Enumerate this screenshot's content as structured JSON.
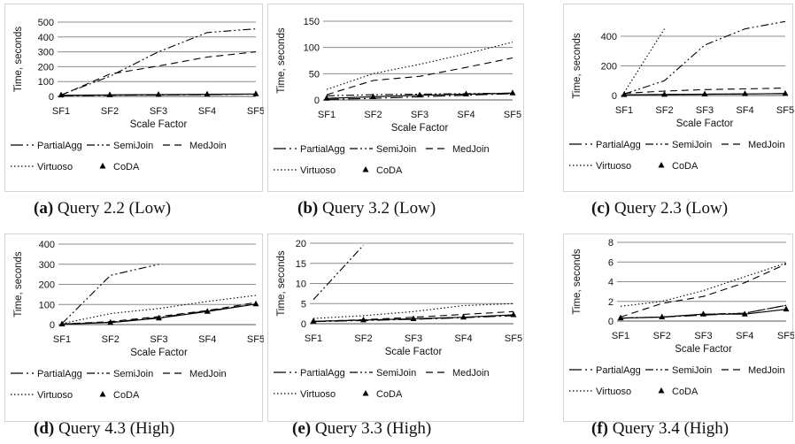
{
  "panels": [
    {
      "caption_letter": "(a)",
      "caption_text": "Query 2.2 (Low)",
      "chart_data": {
        "type": "line",
        "xlabel": "Scale Factor",
        "ylabel": "Time, seconds",
        "categories": [
          "SF1",
          "SF2",
          "SF3",
          "SF4",
          "SF5"
        ],
        "yticks": [
          0,
          100,
          200,
          300,
          400,
          500
        ],
        "ylim": [
          0,
          500
        ],
        "series": [
          {
            "name": "PartialAgg",
            "values": [
              5,
              8,
              10,
              12,
              15
            ]
          },
          {
            "name": "SemiJoin",
            "values": [
              10,
              135,
              300,
              430,
              455
            ]
          },
          {
            "name": "MedJoin",
            "values": [
              8,
              150,
              205,
              265,
              300
            ]
          },
          {
            "name": "Virtuoso",
            "values": [
              null,
              null,
              null,
              null,
              null
            ]
          },
          {
            "name": "CoDA",
            "values": [
              8,
              10,
              12,
              14,
              16
            ]
          }
        ]
      }
    },
    {
      "caption_letter": "(b)",
      "caption_text": "Query 3.2 (Low)",
      "chart_data": {
        "type": "line",
        "xlabel": "Scale Factor",
        "ylabel": "Time, seconds",
        "categories": [
          "SF1",
          "SF2",
          "SF3",
          "SF4",
          "SF5"
        ],
        "yticks": [
          0,
          50,
          100,
          150
        ],
        "ylim": [
          0,
          150
        ],
        "series": [
          {
            "name": "PartialAgg",
            "values": [
              1,
              3,
              6,
              9,
              12
            ]
          },
          {
            "name": "SemiJoin",
            "values": [
              8,
              10,
              11,
              12,
              13
            ]
          },
          {
            "name": "MedJoin",
            "values": [
              10,
              37,
              45,
              62,
              80
            ]
          },
          {
            "name": "Virtuoso",
            "values": [
              20,
              50,
              68,
              88,
              110
            ]
          },
          {
            "name": "CoDA",
            "values": [
              3,
              6,
              9,
              11,
              13
            ]
          }
        ]
      }
    },
    {
      "caption_letter": "(c)",
      "caption_text": "Query 2.3 (Low)",
      "chart_data": {
        "type": "line",
        "xlabel": "Scale Factor",
        "ylabel": "Time, seconds",
        "categories": [
          "SF1",
          "SF2",
          "SF3",
          "SF4",
          "SF5"
        ],
        "yticks": [
          0,
          200,
          400
        ],
        "ylim": [
          0,
          520
        ],
        "series": [
          {
            "name": "PartialAgg",
            "values": [
              5,
              7,
              9,
              11,
              13
            ]
          },
          {
            "name": "SemiJoin",
            "values": [
              10,
              100,
              340,
              450,
              500
            ]
          },
          {
            "name": "MedJoin",
            "values": [
              15,
              30,
              40,
              45,
              50
            ]
          },
          {
            "name": "Virtuoso",
            "values": [
              20,
              450,
              null,
              null,
              null
            ]
          },
          {
            "name": "CoDA",
            "values": [
              5,
              7,
              9,
              11,
              13
            ]
          }
        ]
      }
    },
    {
      "caption_letter": "(d)",
      "caption_text": "Query 4.3 (High)",
      "chart_data": {
        "type": "line",
        "xlabel": "Scale Factor",
        "ylabel": "Time, seconds",
        "categories": [
          "SF1",
          "SF2",
          "SF3",
          "SF4",
          "SF5"
        ],
        "yticks": [
          0,
          100,
          200,
          300,
          400
        ],
        "ylim": [
          0,
          400
        ],
        "series": [
          {
            "name": "PartialAgg",
            "values": [
              3,
              12,
              35,
              68,
              102
            ]
          },
          {
            "name": "SemiJoin",
            "values": [
              5,
              245,
              300,
              null,
              null
            ]
          },
          {
            "name": "MedJoin",
            "values": [
              3,
              15,
              40,
              70,
              110
            ]
          },
          {
            "name": "Virtuoso",
            "values": [
              5,
              55,
              80,
              115,
              145
            ]
          },
          {
            "name": "CoDA",
            "values": [
              2,
              10,
              32,
              65,
              102
            ]
          }
        ]
      }
    },
    {
      "caption_letter": "(e)",
      "caption_text": "Query 3.3 (High)",
      "chart_data": {
        "type": "line",
        "xlabel": "Scale Factor",
        "ylabel": "Time, seconds",
        "categories": [
          "SF1",
          "SF2",
          "SF3",
          "SF4",
          "SF5"
        ],
        "yticks": [
          0,
          5,
          10,
          15,
          20
        ],
        "ylim": [
          0,
          20
        ],
        "series": [
          {
            "name": "PartialAgg",
            "values": [
              0.5,
              0.8,
              1.1,
              1.5,
              2.0
            ]
          },
          {
            "name": "SemiJoin",
            "values": [
              6,
              19.5,
              null,
              null,
              null
            ]
          },
          {
            "name": "MedJoin",
            "values": [
              0.6,
              1.0,
              1.6,
              2.3,
              3.0
            ]
          },
          {
            "name": "Virtuoso",
            "values": [
              1.3,
              2.0,
              3.0,
              4.5,
              5.0
            ]
          },
          {
            "name": "CoDA",
            "values": [
              0.6,
              0.9,
              1.2,
              1.6,
              2.2
            ]
          }
        ]
      }
    },
    {
      "caption_letter": "(f)",
      "caption_text": "Query 3.4 (High)",
      "chart_data": {
        "type": "line",
        "xlabel": "Scale Factor",
        "ylabel": "Time, seconds",
        "categories": [
          "SF1",
          "SF2",
          "SF3",
          "SF4",
          "SF5"
        ],
        "yticks": [
          0,
          2,
          4,
          6,
          8
        ],
        "ylim": [
          0,
          8
        ],
        "series": [
          {
            "name": "PartialAgg",
            "values": [
              0.3,
              0.4,
              0.6,
              0.8,
              1.6
            ]
          },
          {
            "name": "SemiJoin",
            "values": [
              0.3,
              0.4,
              0.7,
              0.8,
              1.6
            ]
          },
          {
            "name": "MedJoin",
            "values": [
              0.4,
              1.8,
              2.5,
              3.9,
              5.8
            ]
          },
          {
            "name": "Virtuoso",
            "values": [
              1.5,
              2.0,
              3.1,
              4.5,
              5.9
            ]
          },
          {
            "name": "CoDA",
            "values": [
              0.3,
              0.4,
              0.7,
              0.7,
              1.2
            ]
          }
        ]
      }
    }
  ],
  "legend": [
    "PartialAgg",
    "SemiJoin",
    "MedJoin",
    "Virtuoso",
    "CoDA"
  ],
  "colors": {
    "line": "#000000",
    "grid": "#8c8c8c",
    "frame": "#d4d4d4"
  }
}
